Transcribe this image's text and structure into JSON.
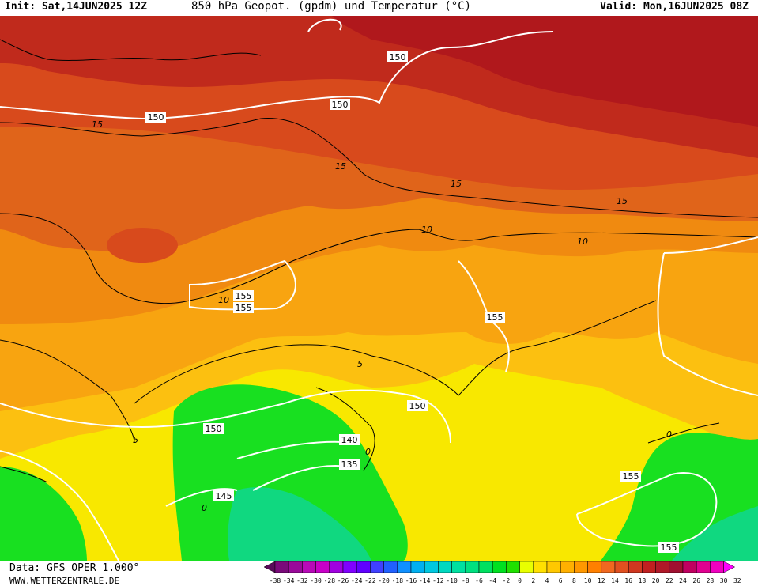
{
  "header": {
    "init": "Init: Sat,14JUN2025 12Z",
    "title": "850 hPa Geopot. (gpdm) und Temperatur (°C)",
    "valid": "Valid: Mon,16JUN2025 08Z"
  },
  "footer": {
    "data_source": "Data: GFS OPER 1.000°",
    "site": "WWW.WETTERZENTRALE.DE"
  },
  "legend": {
    "ticks": [
      "-38",
      "-34",
      "-32",
      "-30",
      "-28",
      "-26",
      "-24",
      "-22",
      "-20",
      "-18",
      "-16",
      "-14",
      "-12",
      "-10",
      "-8",
      "-6",
      "-4",
      "-2",
      "0",
      "2",
      "4",
      "6",
      "8",
      "10",
      "12",
      "14",
      "16",
      "18",
      "20",
      "22",
      "24",
      "26",
      "28",
      "30",
      "32"
    ],
    "colors": [
      "#5a0a5a",
      "#7a0a7a",
      "#9a0a9a",
      "#b80ab8",
      "#c800c8",
      "#a000e0",
      "#8000ff",
      "#6000ff",
      "#4040ff",
      "#2060ff",
      "#1090ff",
      "#00b0f0",
      "#00c8e0",
      "#00d8c0",
      "#00e0a0",
      "#00e080",
      "#00e060",
      "#00e020",
      "#20e000",
      "#e8ff00",
      "#ffe000",
      "#ffc800",
      "#ffb000",
      "#ff9800",
      "#ff8000",
      "#f06820",
      "#e05020",
      "#d03820",
      "#c02020",
      "#b01828",
      "#a01030",
      "#c00060",
      "#e00090",
      "#f000c0",
      "#ff00ff"
    ]
  },
  "map": {
    "colors": {
      "deep_red": "#b0181c",
      "dark_red": "#c02a1c",
      "red_orange": "#d84a1c",
      "orange_red": "#e0641a",
      "orange": "#f08a10",
      "light_orange": "#f8a410",
      "yellow_orange": "#fcc010",
      "yellow": "#f8e800",
      "yellow_green": "#c8f000",
      "green": "#18e020",
      "teal_green": "#10d880"
    },
    "geopotential_labels": [
      {
        "id": "g150-1",
        "text": "150"
      },
      {
        "id": "g150-2",
        "text": "150"
      },
      {
        "id": "g150-3",
        "text": "150"
      },
      {
        "id": "g155-1",
        "text": "155"
      },
      {
        "id": "g155-2",
        "text": "155"
      },
      {
        "id": "g155-3",
        "text": "155"
      },
      {
        "id": "g150-4",
        "text": "150"
      },
      {
        "id": "g150-5",
        "text": "150"
      },
      {
        "id": "g140",
        "text": "140"
      },
      {
        "id": "g135",
        "text": "135"
      },
      {
        "id": "g145",
        "text": "145"
      },
      {
        "id": "g155-4",
        "text": "155"
      },
      {
        "id": "g155-5",
        "text": "155"
      }
    ],
    "isotherm_labels": [
      {
        "id": "t15-1",
        "text": "15"
      },
      {
        "id": "t15-2",
        "text": "15"
      },
      {
        "id": "t15-3",
        "text": "15"
      },
      {
        "id": "t15-4",
        "text": "15"
      },
      {
        "id": "t10-1",
        "text": "10"
      },
      {
        "id": "t10-2",
        "text": "10"
      },
      {
        "id": "t10-3",
        "text": "10"
      },
      {
        "id": "t5-1",
        "text": "5"
      },
      {
        "id": "t5-2",
        "text": "5"
      },
      {
        "id": "t0-1",
        "text": "0"
      },
      {
        "id": "t0-2",
        "text": "0"
      },
      {
        "id": "t0-3",
        "text": "0"
      }
    ]
  }
}
